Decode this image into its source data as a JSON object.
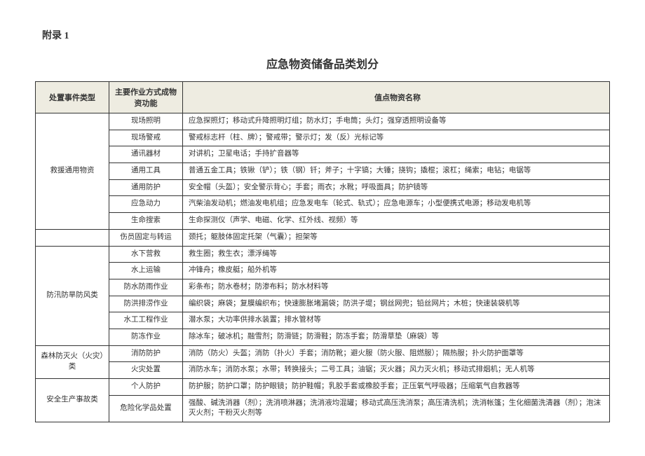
{
  "appendix": "附录 1",
  "title": "应急物资储备品类划分",
  "headers": {
    "category": "处置事件类型",
    "function": "主要作业方式成物资功能",
    "items": "值点物资名称"
  },
  "rows": [
    {
      "cat": "救援通用物资",
      "catspan": 7,
      "func": "现场照明",
      "items": "应急探照灯；移动式升降照明灯组；防水灯；手电筒；头灯；强穿透照明设备等"
    },
    {
      "func": "现场警戒",
      "items": "警戒标志杆（柱、牌）；警戒带；警示灯；发（反）光标记等"
    },
    {
      "func": "通讯器材",
      "items": "对讲机；卫星电话；手持扩音器等"
    },
    {
      "func": "通用工具",
      "items": "普通五金工具；铁锹（铲）；铁（钢）钎；斧子；十字镐；大锤；挠钩；撬棍；滚杠；绳索；电钻；电锯等"
    },
    {
      "func": "通用防护",
      "items": "安全帽（头盔）；安全警示背心；手套；雨衣；水靴；呼吸面具；防护镜等"
    },
    {
      "func": "应急动力",
      "items": "汽柴油发动机；燃油发电机组；应急发电车（轮式、轨式）；应急电源车；小型便携式电源；移动发电机等"
    },
    {
      "func": "生命搜索",
      "items": "生命探测仪（声学、电磁、化学、红外线、视频）等"
    },
    {
      "cat": "",
      "catspan": 1,
      "func": "伤员固定与转运",
      "items": "颈托；躯肢体固定托架（气囊）；担架等"
    },
    {
      "cat": "防汛防旱防风类",
      "catspan": 6,
      "func": "水下营救",
      "items": "救生圈；救生衣；漂浮绳等"
    },
    {
      "func": "水上运输",
      "items": "冲锋舟；橡皮艇；船外机等"
    },
    {
      "func": "防水防雨作业",
      "items": "彩条布；防水卷材；防渗布料；防水材料等"
    },
    {
      "func": "防洪排涝作业",
      "items": "编织袋；麻袋；复膜编织布；快速膨胀堵漏袋；防洪子堤；钢丝网兜；铅丝网片；木桩；快速装袋机等"
    },
    {
      "func": "水工工程作业",
      "items": "潜水泵；大功率供排水装置；排水管材等"
    },
    {
      "func": "防冻作业",
      "items": "除冰车；破冰机；融雪剂；防滑链；防滑鞋；防冻手套；防滑草垫（麻袋）等"
    },
    {
      "cat": "森林防灭火（火灾）类",
      "catspan": 2,
      "func": "消防防护",
      "items": "消防（防火）头盔；消防（扑火）手套；消防靴；避火服（防火服、阻燃服）；隔热服；扑火防护面罩等"
    },
    {
      "func": "火灾处置",
      "items": "消防水车；消防水泵；水带；转换接头；二号工具；油锯；灭火器；风力灭火机；移动式排烟机；无人机等"
    },
    {
      "cat": "安全生产事故类",
      "catspan": 2,
      "func": "个人防护",
      "items": "防护服；防护口罩；防护眼镜；防护鞋帽；乳胶手套或橡胶手套；正压氧气呼吸器；压缩氧气自救器等"
    },
    {
      "func": "危险化学品处置",
      "items": "强酸、碱洗消器（剂）；洗消喷淋器；洗消液均混罐；移动式高压洗消泵；高压清洗机；洗消帐篷；生化细菌洗清器（剂）；泡沫灭火剂；干粉灭火剂等"
    }
  ]
}
